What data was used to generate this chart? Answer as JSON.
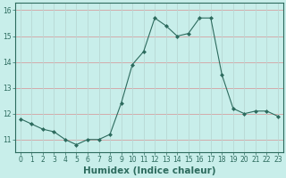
{
  "x": [
    0,
    1,
    2,
    3,
    4,
    5,
    6,
    7,
    8,
    9,
    10,
    11,
    12,
    13,
    14,
    15,
    16,
    17,
    18,
    19,
    20,
    21,
    22,
    23
  ],
  "y": [
    11.8,
    11.6,
    11.4,
    11.3,
    11.0,
    10.8,
    11.0,
    11.0,
    11.2,
    12.4,
    13.9,
    14.4,
    15.7,
    15.4,
    15.0,
    15.1,
    15.7,
    15.7,
    13.5,
    12.2,
    12.0,
    12.1,
    12.1,
    11.9
  ],
  "line_color": "#2d6b5e",
  "marker": "D",
  "marker_size": 2.0,
  "background_color": "#c8eeea",
  "grid_color_h": "#d4a0a0",
  "grid_color_v": "#b8d8d4",
  "xlabel": "Humidex (Indice chaleur)",
  "ylim": [
    10.5,
    16.3
  ],
  "xlim": [
    -0.5,
    23.5
  ],
  "yticks": [
    11,
    12,
    13,
    14,
    15,
    16
  ],
  "xticks": [
    0,
    1,
    2,
    3,
    4,
    5,
    6,
    7,
    8,
    9,
    10,
    11,
    12,
    13,
    14,
    15,
    16,
    17,
    18,
    19,
    20,
    21,
    22,
    23
  ],
  "tick_fontsize": 5.5,
  "xlabel_fontsize": 7.5
}
